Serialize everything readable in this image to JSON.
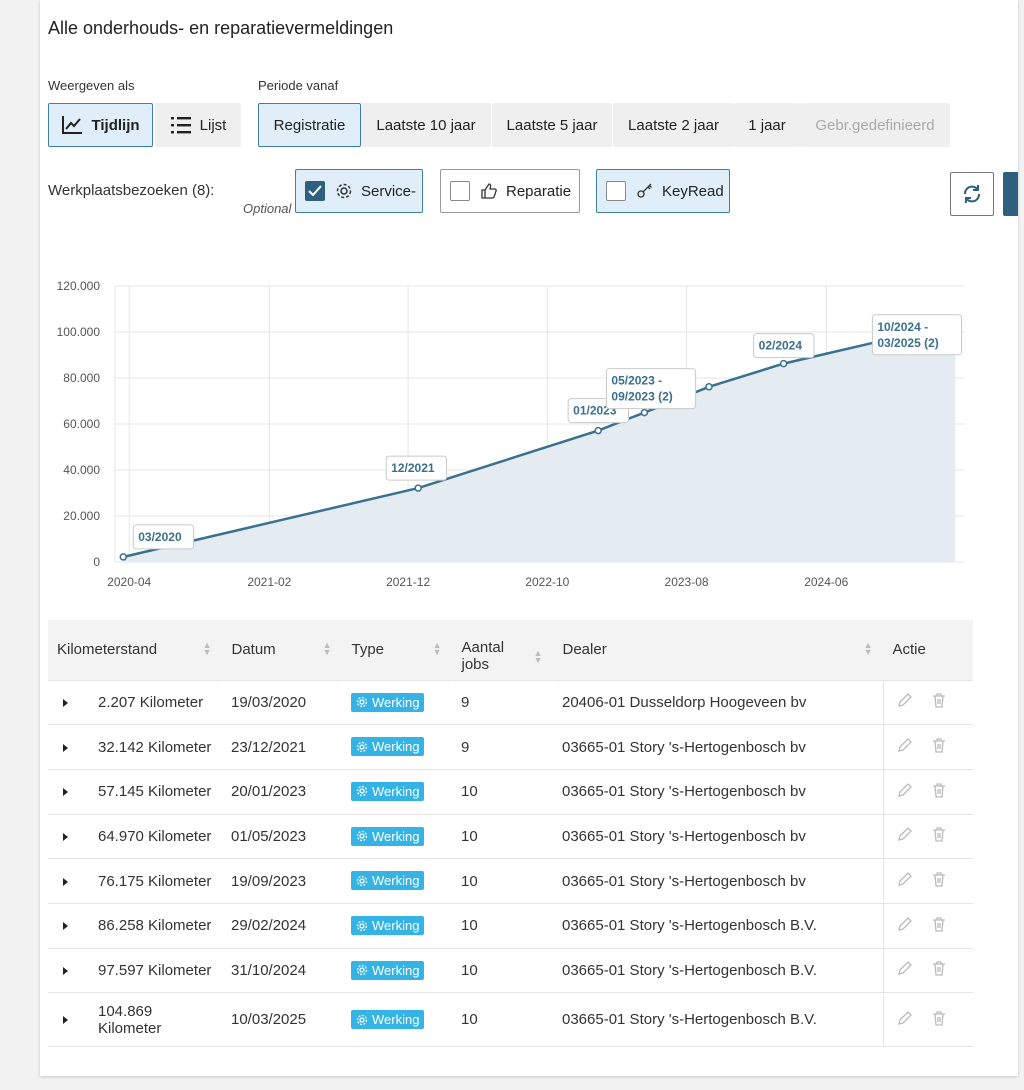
{
  "header": {
    "title": "Alle onderhouds- en reparatievermeldingen"
  },
  "view": {
    "label": "Weergeven als",
    "options": [
      {
        "label": "Tijdlijn",
        "icon": "line-chart-icon",
        "active": true
      },
      {
        "label": "Lijst",
        "icon": "list-icon",
        "active": false
      }
    ]
  },
  "period": {
    "label": "Periode vanaf",
    "options": [
      {
        "label": "Registratie",
        "active": true
      },
      {
        "label": "Laatste 10 jaar"
      },
      {
        "label": "Laatste 5 jaar"
      },
      {
        "label": "Laatste 2 jaar"
      },
      {
        "label": "1 jaar"
      },
      {
        "label": "Gebr.gedefinieerd",
        "disabled": true
      }
    ]
  },
  "visits": {
    "label": "Werkplaatsbezoeken (8):",
    "optional": "Optional",
    "filters": [
      {
        "label": "Service-",
        "icon": "gear-icon",
        "checked": true
      },
      {
        "label": "Reparatie",
        "icon": "thumbs-up-icon",
        "checked": false
      },
      {
        "label": "KeyRead",
        "icon": "key-icon",
        "checked": false
      }
    ]
  },
  "chart_data": {
    "type": "area",
    "x_axis_type": "date",
    "x": [
      "2020-03-19",
      "2021-12-23",
      "2023-01-20",
      "2023-05-01",
      "2023-09-19",
      "2024-02-29",
      "2024-10-31",
      "2025-03-10"
    ],
    "y": [
      2207,
      32142,
      57145,
      64970,
      76175,
      86258,
      97597,
      104869
    ],
    "ylim": [
      0,
      120000
    ],
    "yticks": [
      "0",
      "20.000",
      "40.000",
      "60.000",
      "80.000",
      "100.000",
      "120.000"
    ],
    "xticks": [
      "2020-04",
      "2021-02",
      "2021-12",
      "2022-10",
      "2023-08",
      "2024-06"
    ],
    "annotations": [
      "03/2020",
      "12/2021",
      "01/2023",
      "05/2023 -",
      "09/2023 (2)",
      "02/2024",
      "10/2024 -",
      "03/2025 (2)"
    ],
    "grid": true,
    "line_color": "#3a7190",
    "fill_color": "#e4ecf2"
  },
  "table": {
    "columns": [
      "Kilometerstand",
      "Datum",
      "Type",
      "Aantal",
      "jobs",
      "Dealer",
      "Actie"
    ],
    "rows": [
      {
        "km": "2.207 Kilometer",
        "date": "19/03/2020",
        "type": "Werking",
        "jobs": "9",
        "dealer": "20406-01 Dusseldorp Hoogeveen bv"
      },
      {
        "km": "32.142 Kilometer",
        "date": "23/12/2021",
        "type": "Werking",
        "jobs": "9",
        "dealer": "03665-01 Story 's-Hertogenbosch bv"
      },
      {
        "km": "57.145 Kilometer",
        "date": "20/01/2023",
        "type": "Werking",
        "jobs": "10",
        "dealer": "03665-01 Story 's-Hertogenbosch bv"
      },
      {
        "km": "64.970 Kilometer",
        "date": "01/05/2023",
        "type": "Werking",
        "jobs": "10",
        "dealer": "03665-01 Story 's-Hertogenbosch bv"
      },
      {
        "km": "76.175 Kilometer",
        "date": "19/09/2023",
        "type": "Werking",
        "jobs": "10",
        "dealer": "03665-01 Story 's-Hertogenbosch bv"
      },
      {
        "km": "86.258 Kilometer",
        "date": "29/02/2024",
        "type": "Werking",
        "jobs": "10",
        "dealer": "03665-01 Story 's-Hertogenbosch B.V."
      },
      {
        "km": "97.597 Kilometer",
        "date": "31/10/2024",
        "type": "Werking",
        "jobs": "10",
        "dealer": "03665-01 Story 's-Hertogenbosch B.V."
      },
      {
        "km": "104.869 Kilometer",
        "date": "10/03/2025",
        "type": "Werking",
        "jobs": "10",
        "dealer": "03665-01 Story 's-Hertogenbosch B.V."
      }
    ]
  }
}
